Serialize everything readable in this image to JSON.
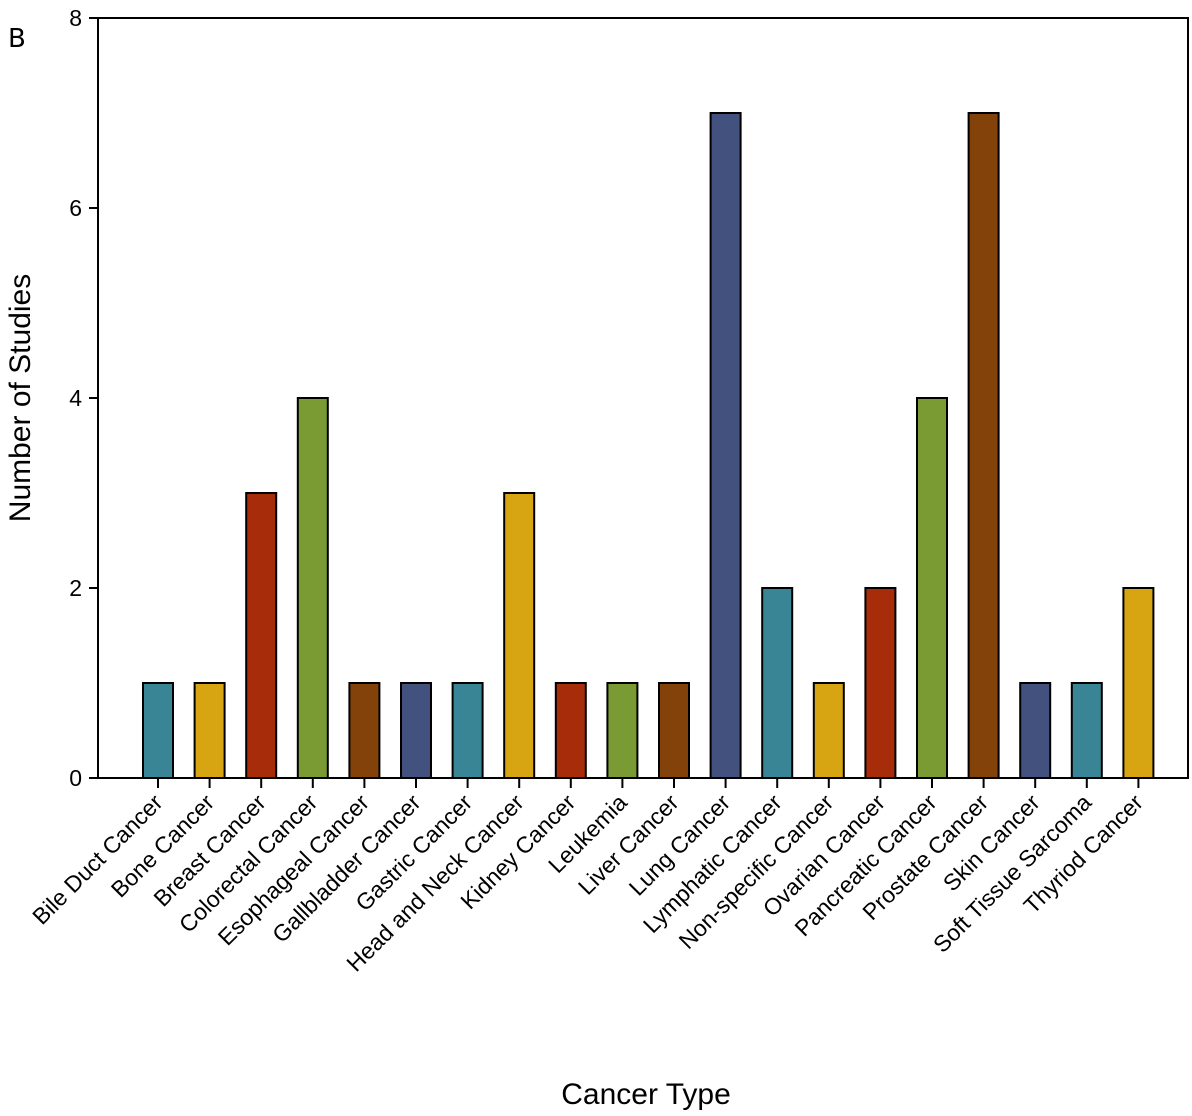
{
  "panel_label": "B",
  "chart_data": {
    "type": "bar",
    "title": "",
    "xlabel": "Cancer Type",
    "ylabel": "Number of Studies",
    "ylim": [
      0,
      8
    ],
    "yticks": [
      0,
      2,
      4,
      6,
      8
    ],
    "grid": false,
    "categories": [
      "Bile Duct Cancer",
      "Bone Cancer",
      "Breast Cancer",
      "Colorectal Cancer",
      "Esophageal Cancer",
      "Gallbladder Cancer",
      "Gastric Cancer",
      "Head and Neck Cancer",
      "Kidney Cancer",
      "Leukemia",
      "Liver Cancer",
      "Lung Cancer",
      "Lymphatic Cancer",
      "Non-specific Cancer",
      "Ovarian Cancer",
      "Pancreatic Cancer",
      "Prostate Cancer",
      "Skin Cancer",
      "Soft Tissue Sarcoma",
      "Thyriod Cancer"
    ],
    "values": [
      1,
      1,
      3,
      4,
      1,
      1,
      1,
      3,
      1,
      1,
      1,
      7,
      2,
      1,
      2,
      4,
      7,
      1,
      1,
      2
    ],
    "colors": [
      "#3a8595",
      "#d8a512",
      "#a62c0a",
      "#7a9a34",
      "#82420a",
      "#43517e",
      "#3a8595",
      "#d8a512",
      "#a62c0a",
      "#7a9a34",
      "#82420a",
      "#43517e",
      "#3a8595",
      "#d8a512",
      "#a62c0a",
      "#7a9a34",
      "#82420a",
      "#43517e",
      "#3a8595",
      "#d8a512"
    ]
  }
}
